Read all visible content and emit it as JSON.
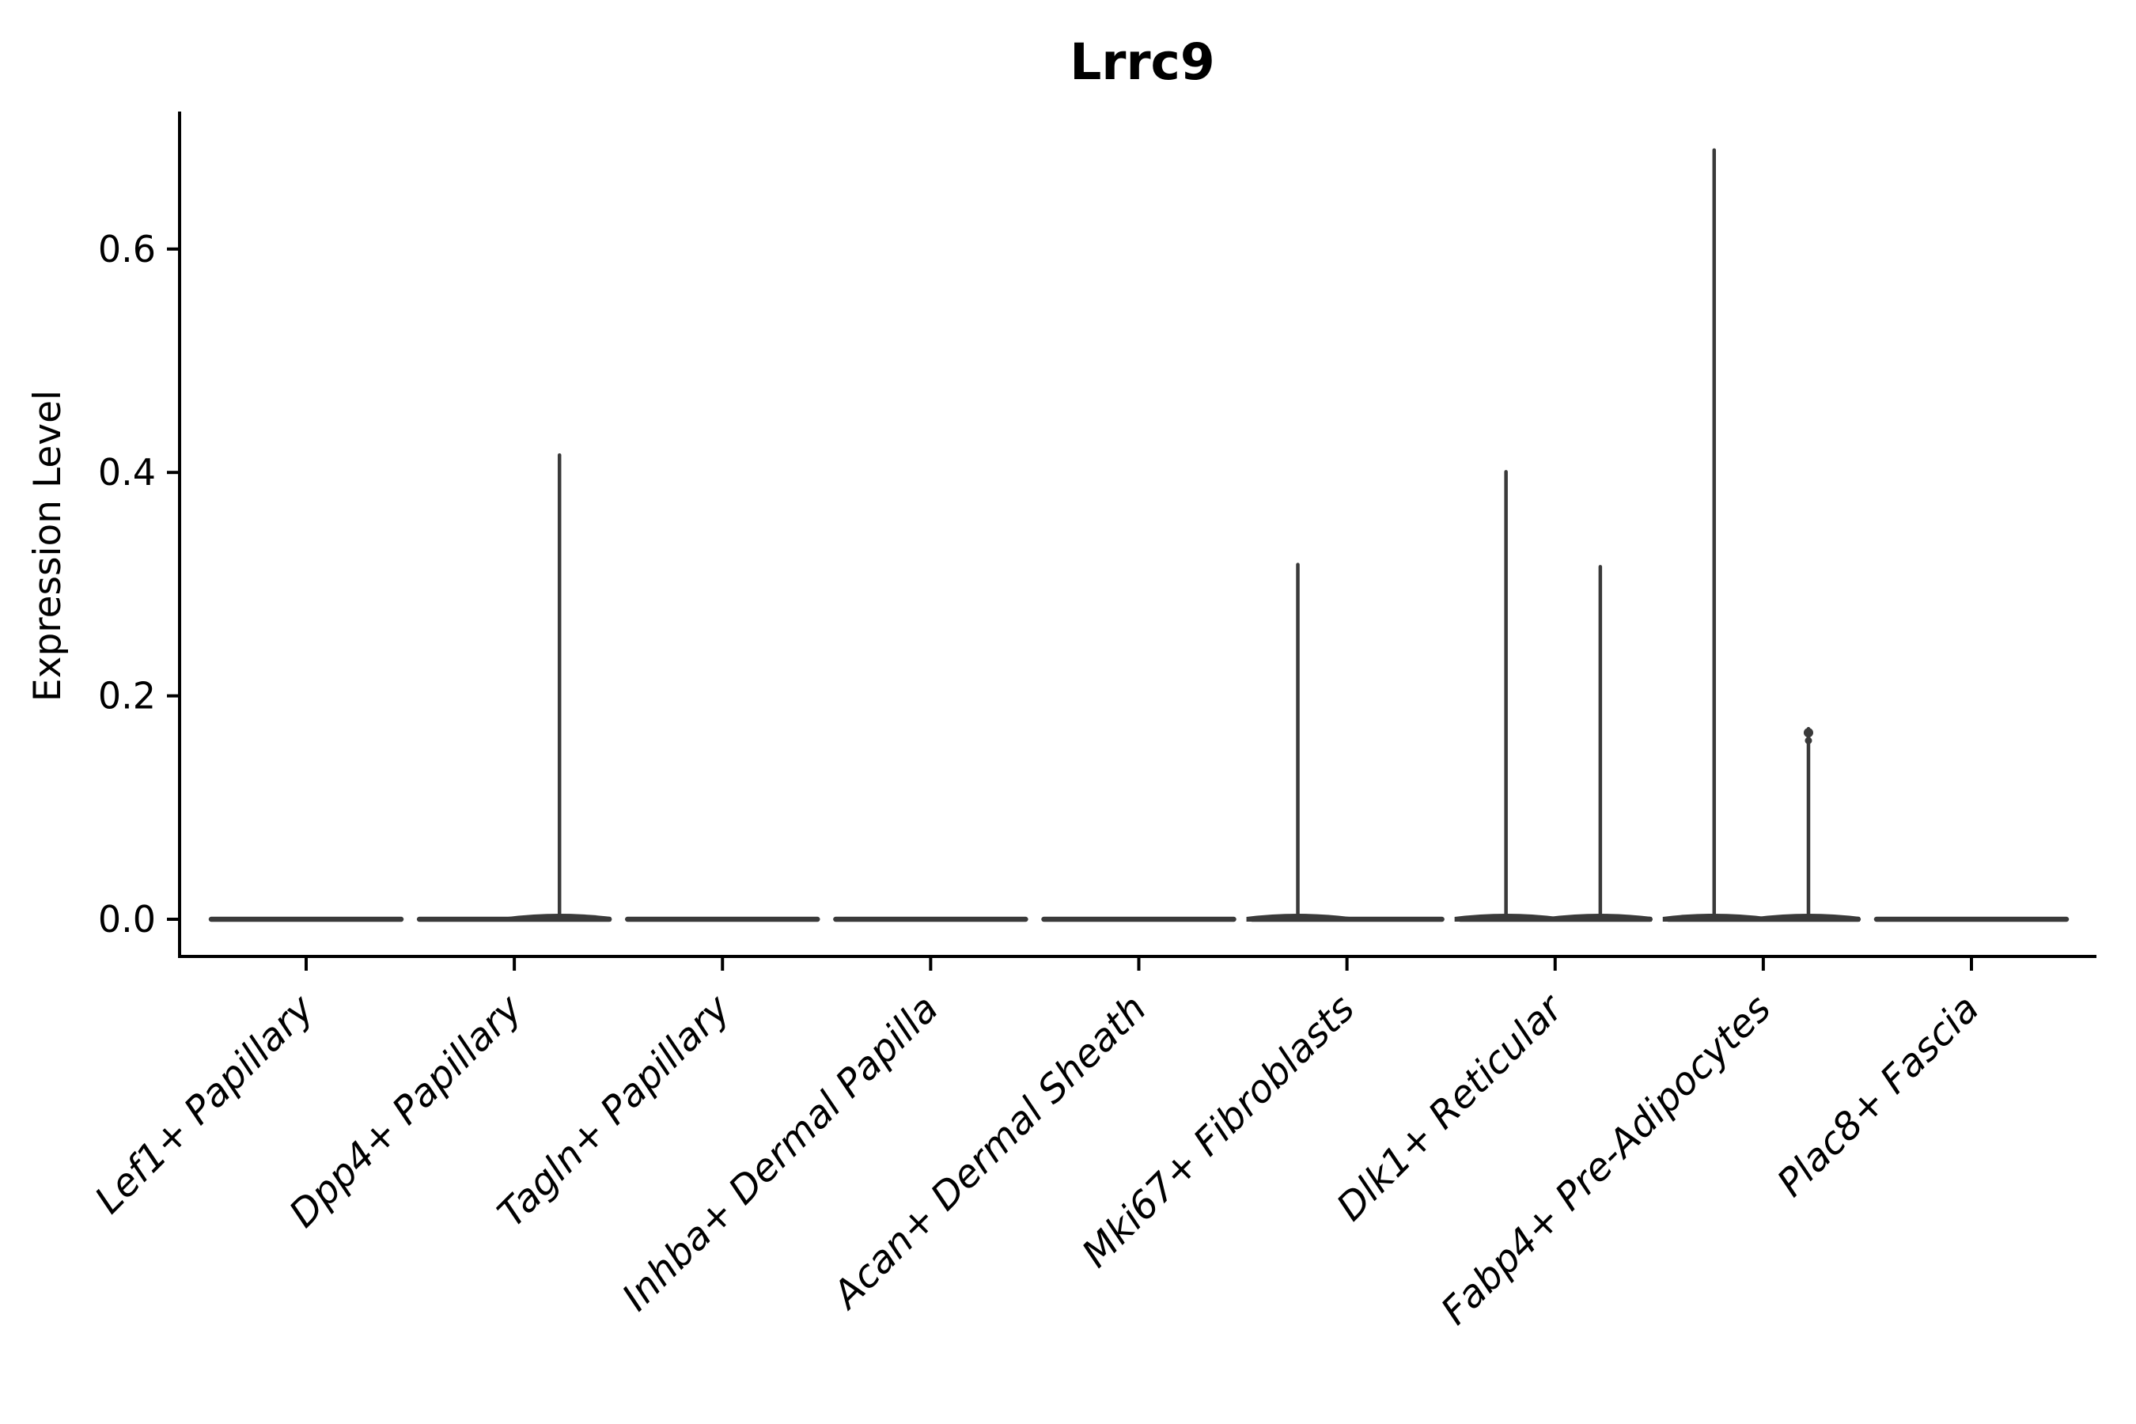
{
  "figure": {
    "background": "#ffffff",
    "axis_color": "#000000",
    "violin_color": "#3a3a3a",
    "text_color": "#000000"
  },
  "chart_data": {
    "type": "violin",
    "title": "Lrrc9",
    "xlabel": "",
    "ylabel": "Expression Level",
    "ylim": [
      0,
      0.72
    ],
    "grid": false,
    "legend": "none",
    "yticks": [
      {
        "value": 0.0,
        "label": "0.0"
      },
      {
        "value": 0.2,
        "label": "0.2"
      },
      {
        "value": 0.4,
        "label": "0.4"
      },
      {
        "value": 0.6,
        "label": "0.6"
      }
    ],
    "categories": [
      "Lef1+ Papillary",
      "Dpp4+ Papillary",
      "Tagln+ Papillary",
      "Inhba+ Dermal Papilla",
      "Acan+ Dermal Sheath",
      "Mki67+ Fibroblasts",
      "Dlk1+ Reticular",
      "Fabp4+ Pre-Adipocytes",
      "Plac8+ Fascia"
    ],
    "series": [
      {
        "category": "Lef1+ Papillary",
        "max_expression": 0.0,
        "spikes": []
      },
      {
        "category": "Dpp4+ Papillary",
        "max_expression": 0.42,
        "spikes": [
          {
            "offset_frac": 0.217,
            "value": 0.417,
            "point": false
          }
        ]
      },
      {
        "category": "Tagln+ Papillary",
        "max_expression": 0.0,
        "spikes": []
      },
      {
        "category": "Inhba+ Dermal Papilla",
        "max_expression": 0.0,
        "spikes": []
      },
      {
        "category": "Acan+ Dermal Sheath",
        "max_expression": 0.0,
        "spikes": []
      },
      {
        "category": "Mki67+ Fibroblasts",
        "max_expression": 0.32,
        "spikes": [
          {
            "offset_frac": -0.236,
            "value": 0.319,
            "point": false
          }
        ]
      },
      {
        "category": "Dlk1+ Reticular",
        "max_expression": 0.4,
        "spikes": [
          {
            "offset_frac": -0.236,
            "value": 0.402,
            "point": false
          },
          {
            "offset_frac": 0.217,
            "value": 0.317,
            "point": false
          }
        ]
      },
      {
        "category": "Fabp4+ Pre-Adipocytes",
        "max_expression": 0.69,
        "spikes": [
          {
            "offset_frac": -0.236,
            "value": 0.69,
            "point": false
          },
          {
            "offset_frac": 0.217,
            "value": 0.172,
            "point": true
          }
        ]
      },
      {
        "category": "Plac8+ Fascia",
        "max_expression": 0.0,
        "spikes": []
      }
    ]
  }
}
